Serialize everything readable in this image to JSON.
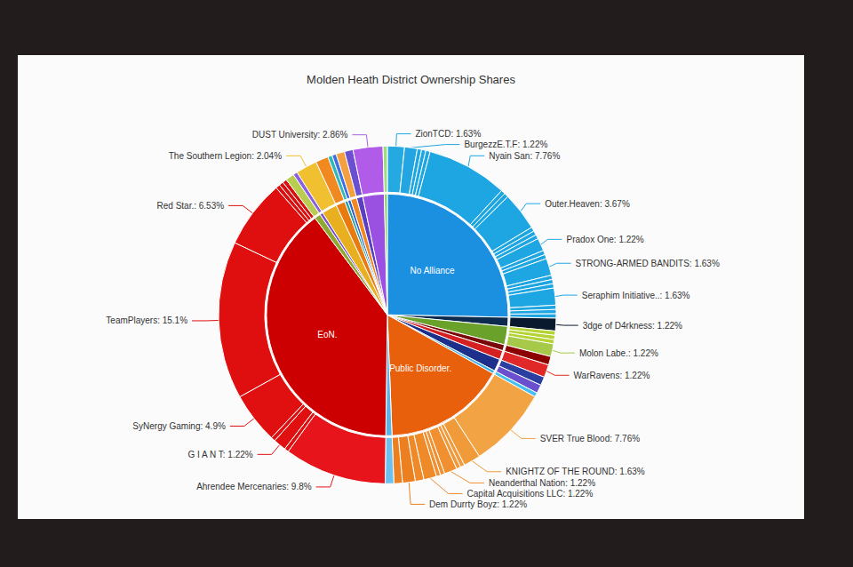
{
  "chart_data": {
    "type": "pie",
    "title": "Molden Heath District Ownership Shares",
    "groups": [
      {
        "name": "No Alliance",
        "color": "#1b8fe0",
        "members": [
          {
            "label": "ZionTCD: 1.63%",
            "value": 1.63,
            "color": "#24a9e1"
          },
          {
            "label": "BurgezzE.T.F: 1.22%",
            "value": 1.22,
            "color": "#22a5e0"
          },
          {
            "label": null,
            "value": 0.41,
            "color": "#1ea6e3"
          },
          {
            "label": null,
            "value": 0.41,
            "color": "#1ea6e3"
          },
          {
            "label": null,
            "value": 0.41,
            "color": "#1ea6e3"
          },
          {
            "label": "Nyain San: 7.76%",
            "value": 7.76,
            "color": "#1ea6e3"
          },
          {
            "label": null,
            "value": 0.41,
            "color": "#1ea6e3"
          },
          {
            "label": null,
            "value": 0.41,
            "color": "#1ea6e3"
          },
          {
            "label": "Outer.Heaven: 3.67%",
            "value": 3.67,
            "color": "#1ea6e3"
          },
          {
            "label": null,
            "value": 0.41,
            "color": "#1ea6e3"
          },
          {
            "label": null,
            "value": 0.41,
            "color": "#1ea6e3"
          },
          {
            "label": null,
            "value": 0.41,
            "color": "#1ea6e3"
          },
          {
            "label": "Pradox One: 1.22%",
            "value": 1.22,
            "color": "#1ea6e3"
          },
          {
            "label": null,
            "value": 0.41,
            "color": "#1ea6e3"
          },
          {
            "label": null,
            "value": 0.41,
            "color": "#1ea6e3"
          },
          {
            "label": "STRONG-ARMED BANDITS: 1.63%",
            "value": 1.63,
            "color": "#1ea6e3"
          },
          {
            "label": null,
            "value": 0.41,
            "color": "#1ea6e3"
          },
          {
            "label": null,
            "value": 0.41,
            "color": "#1ea6e3"
          },
          {
            "label": null,
            "value": 0.41,
            "color": "#1ea6e3"
          },
          {
            "label": "Seraphim Initiative..: 1.63%",
            "value": 1.63,
            "color": "#1ea6e3"
          },
          {
            "label": null,
            "value": 0.41,
            "color": "#1ea6e3"
          },
          {
            "label": null,
            "value": 0.41,
            "color": "#1ea6e3"
          },
          {
            "label": null,
            "value": 0.41,
            "color": "#1ea6e3"
          }
        ]
      },
      {
        "name": null,
        "color": "#0d2b4e",
        "members": [
          {
            "label": "3dge of D4rkness: 1.22%",
            "value": 1.22,
            "color": "#0a1a2e"
          }
        ]
      },
      {
        "name": null,
        "color": "#6aa12a",
        "members": [
          {
            "label": null,
            "value": 0.41,
            "color": "#b5d334"
          },
          {
            "label": null,
            "value": 0.41,
            "color": "#b5d334"
          },
          {
            "label": null,
            "value": 0.41,
            "color": "#b5d334"
          },
          {
            "label": "Molon Labe.: 1.22%",
            "value": 1.22,
            "color": "#a6c94a"
          }
        ]
      },
      {
        "name": null,
        "color": "#7a0a0a",
        "members": [
          {
            "label": null,
            "value": 0.82,
            "color": "#8b0000"
          }
        ]
      },
      {
        "name": null,
        "color": "#d42020",
        "members": [
          {
            "label": "WarRavens: 1.22%",
            "value": 1.22,
            "color": "#e02828"
          }
        ]
      },
      {
        "name": null,
        "color": "#1c2f8a",
        "members": [
          {
            "label": null,
            "value": 0.82,
            "color": "#2a3fa0"
          },
          {
            "label": null,
            "value": 0.82,
            "color": "#6a4fcf"
          }
        ]
      },
      {
        "name": null,
        "color": "#3bb0e8",
        "members": [
          {
            "label": null,
            "value": 0.41,
            "color": "#45c0f0"
          }
        ]
      },
      {
        "name": "Public Disorder.",
        "color": "#e8600c",
        "members": [
          {
            "label": "SVER True Blood: 7.76%",
            "value": 7.76,
            "color": "#f2a444"
          },
          {
            "label": "KNIGHTZ OF THE ROUND: 1.63%",
            "value": 1.63,
            "color": "#f09a3a"
          },
          {
            "label": null,
            "value": 0.41,
            "color": "#f09a3a"
          },
          {
            "label": null,
            "value": 0.41,
            "color": "#f09a3a"
          },
          {
            "label": "Neanderthal Nation: 1.22%",
            "value": 1.22,
            "color": "#f09030"
          },
          {
            "label": null,
            "value": 0.41,
            "color": "#f09030"
          },
          {
            "label": null,
            "value": 0.41,
            "color": "#f09030"
          },
          {
            "label": "Capital Acquisitions LLC: 1.22%",
            "value": 1.22,
            "color": "#ee8a28"
          },
          {
            "label": null,
            "value": 0.82,
            "color": "#ee8a28"
          },
          {
            "label": "Dem Durrty Boyz: 1.22%",
            "value": 1.22,
            "color": "#ec8020"
          },
          {
            "label": null,
            "value": 0.82,
            "color": "#ec8020"
          }
        ]
      },
      {
        "name": null,
        "color": "#5ab4e8",
        "members": [
          {
            "label": null,
            "value": 0.82,
            "color": "#6cc0ee"
          }
        ]
      },
      {
        "name": "EoN.",
        "color": "#cc0000",
        "members": [
          {
            "label": "Ahrendee Mercenaries: 9.8%",
            "value": 9.8,
            "color": "#e8141b"
          },
          {
            "label": null,
            "value": 0.41,
            "color": "#e01010"
          },
          {
            "label": "G I A N T: 1.22%",
            "value": 1.22,
            "color": "#e01010"
          },
          {
            "label": null,
            "value": 0.41,
            "color": "#e01010"
          },
          {
            "label": "SyNergy Gaming: 4.9%",
            "value": 4.9,
            "color": "#e01010"
          },
          {
            "label": "TeamPlayers: 15.1%",
            "value": 15.1,
            "color": "#e00f0f"
          },
          {
            "label": "Red Star.: 6.53%",
            "value": 6.53,
            "color": "#e00f0f"
          },
          {
            "label": null,
            "value": 0.41,
            "color": "#d81010"
          },
          {
            "label": null,
            "value": 0.41,
            "color": "#d81010"
          },
          {
            "label": null,
            "value": 0.41,
            "color": "#d81010"
          }
        ]
      },
      {
        "name": null,
        "color": "#8fa830",
        "members": [
          {
            "label": null,
            "value": 0.82,
            "color": "#b8cc50"
          }
        ]
      },
      {
        "name": null,
        "color": "#7a4fd0",
        "members": [
          {
            "label": null,
            "value": 0.41,
            "color": "#8a60e0"
          }
        ]
      },
      {
        "name": null,
        "color": "#e8b020",
        "members": [
          {
            "label": "The Southern Legion: 2.04%",
            "value": 2.04,
            "color": "#f0c030"
          }
        ]
      },
      {
        "name": null,
        "color": "#e87a10",
        "members": [
          {
            "label": null,
            "value": 1.22,
            "color": "#f08a20"
          }
        ]
      },
      {
        "name": null,
        "color": "#20a0a0",
        "members": [
          {
            "label": null,
            "value": 0.41,
            "color": "#30b8b8"
          }
        ]
      },
      {
        "name": null,
        "color": "#3060d0",
        "members": [
          {
            "label": null,
            "value": 0.41,
            "color": "#4070e0"
          }
        ]
      },
      {
        "name": null,
        "color": "#f08a20",
        "members": [
          {
            "label": null,
            "value": 0.82,
            "color": "#f5a040"
          }
        ]
      },
      {
        "name": null,
        "color": "#5a3fc0",
        "members": [
          {
            "label": null,
            "value": 0.82,
            "color": "#6a50d0"
          }
        ]
      },
      {
        "name": null,
        "color": "#9a50e0",
        "members": [
          {
            "label": "DUST University: 2.86%",
            "value": 2.86,
            "color": "#b05ce8"
          }
        ]
      },
      {
        "name": null,
        "color": "#8fd06a",
        "members": [
          {
            "label": null,
            "value": 0.41,
            "color": "#a0dc80"
          }
        ]
      }
    ]
  }
}
